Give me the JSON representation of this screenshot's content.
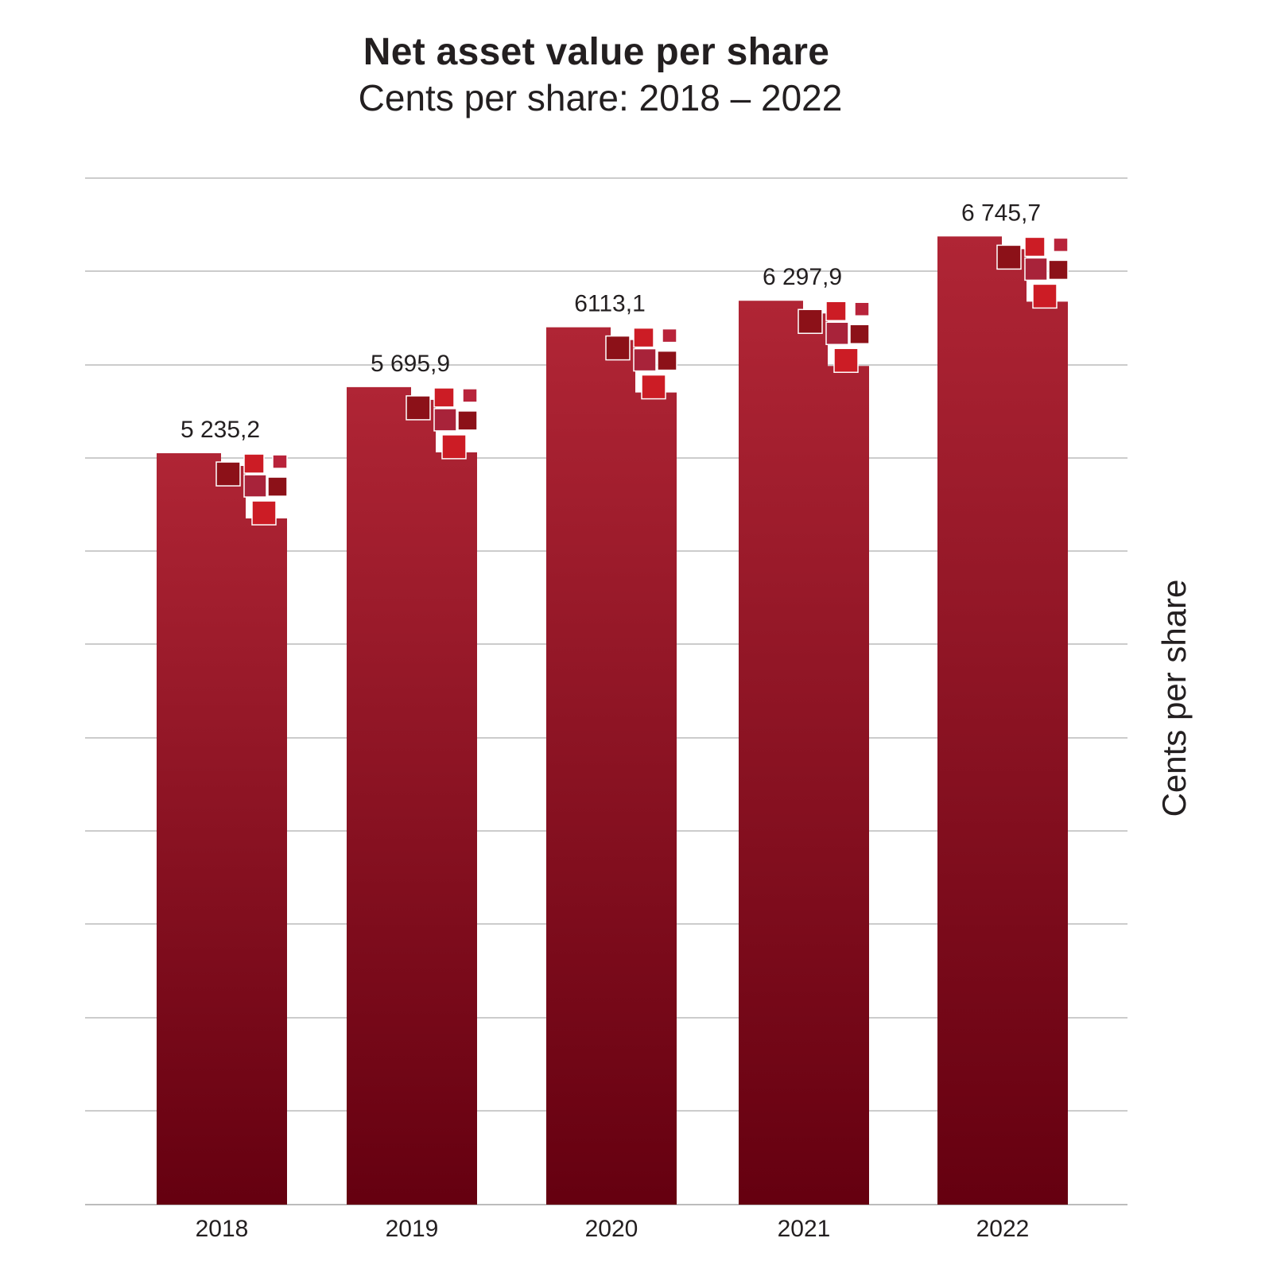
{
  "chart_data": {
    "type": "bar",
    "title": "Net asset value per share",
    "subtitle": "Cents per share: 2018 – 2022",
    "xlabel": "",
    "ylabel": "Cents per share",
    "categories": [
      "2018",
      "2019",
      "2020",
      "2021",
      "2022"
    ],
    "values": [
      5235.2,
      5695.9,
      6113.1,
      6297.9,
      6745.7
    ],
    "data_labels": [
      "5 235,2",
      "5 695,9",
      "6113,1",
      "6 297,9",
      "6 745,7"
    ],
    "ylim": [
      0,
      7200
    ],
    "grid": true,
    "legend": "none",
    "colors": {
      "bar_top": "#b02535",
      "bar_bottom": "#650010",
      "grid": "#bcbcbc",
      "deco_dark": "#8c1118",
      "deco_mid": "#a8233a",
      "deco_bright": "#cc1c25",
      "deco_light": "#b8233a"
    }
  }
}
